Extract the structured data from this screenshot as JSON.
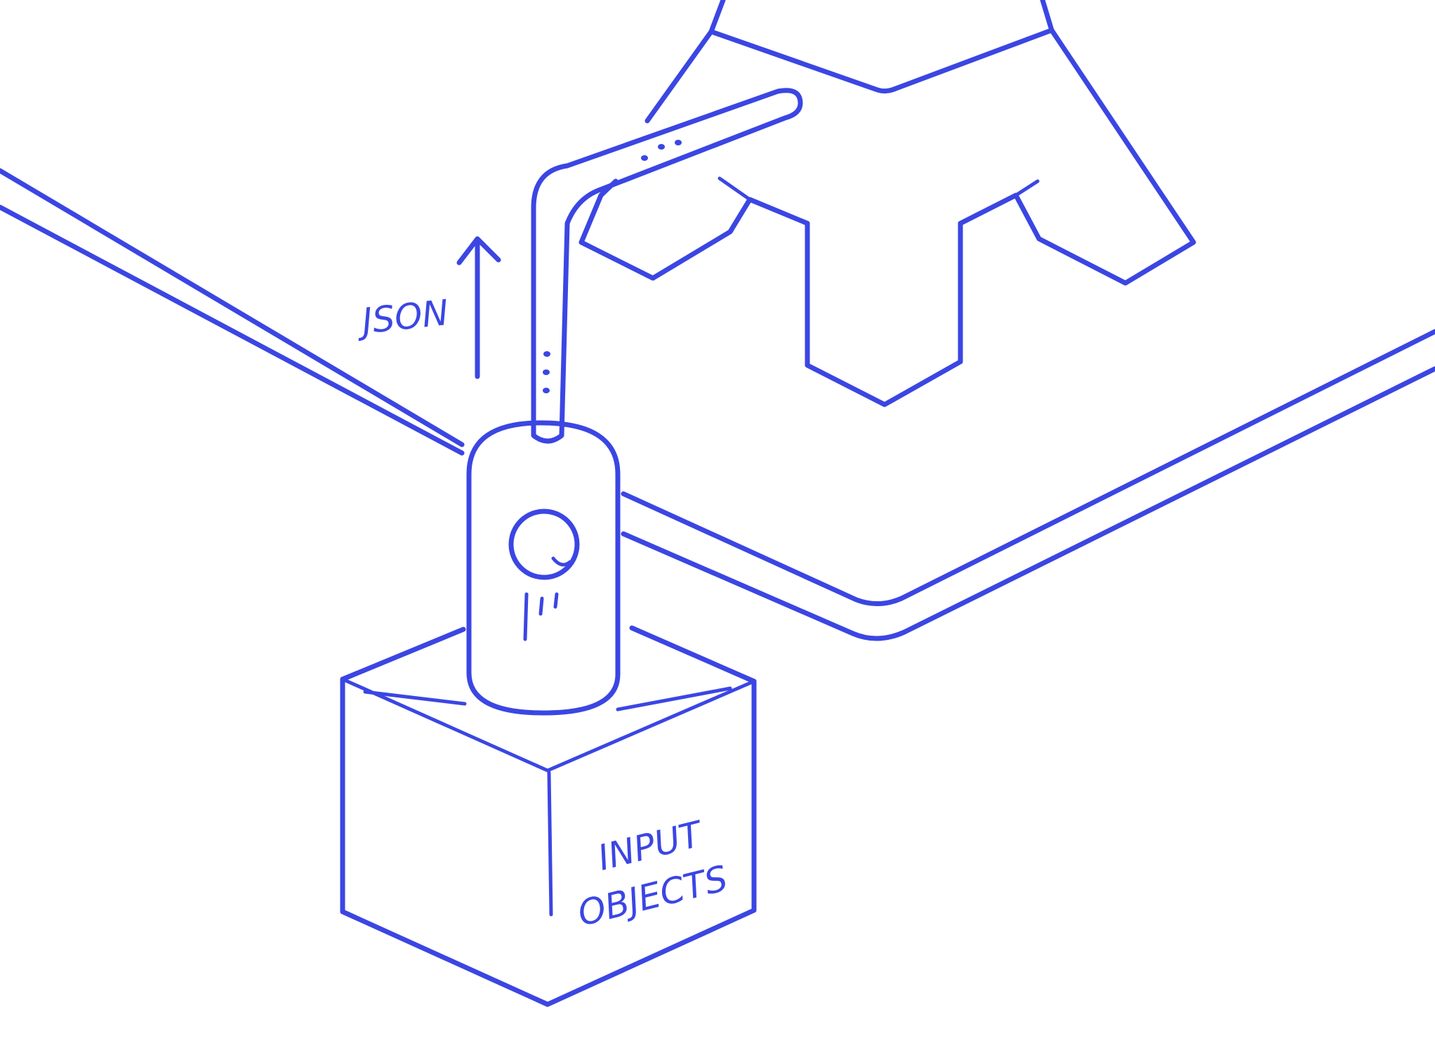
{
  "diagram": {
    "ink_color": "#3b46e3",
    "background_color": "#ffffff",
    "labels": {
      "arrow_label": "JSON",
      "box_label_line1": "INPUT",
      "box_label_line2": "OBJECTS"
    },
    "elements": {
      "platform": "platform-outline",
      "tower": "gear-tower",
      "pipe": "data-pipe",
      "device": "capsule-device",
      "box": "input-objects-box",
      "arrow": "up-arrow-icon"
    }
  }
}
